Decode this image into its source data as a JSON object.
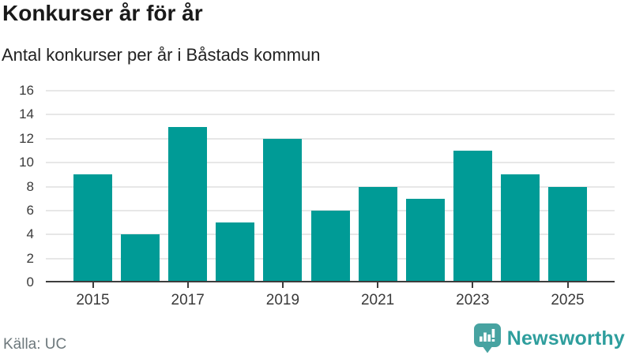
{
  "header": {
    "title": "Konkurser år för år",
    "subtitle": "Antal konkurser per år i Båstads kommun"
  },
  "chart_data": {
    "type": "bar",
    "title": "Konkurser år för år",
    "subtitle": "Antal konkurser per år i Båstads kommun",
    "categories": [
      "2015",
      "2016",
      "2017",
      "2018",
      "2019",
      "2020",
      "2021",
      "2022",
      "2023",
      "2024",
      "2025"
    ],
    "values": [
      9,
      4,
      13,
      5,
      12,
      6,
      8,
      7,
      11,
      9,
      8
    ],
    "xlabel": "",
    "ylabel": "",
    "ylim": [
      0,
      16
    ],
    "ytick_step": 2,
    "ytick_labels": [
      "0",
      "2",
      "4",
      "6",
      "8",
      "10",
      "12",
      "14",
      "16"
    ],
    "xtick_labels": [
      "2015",
      "2017",
      "2019",
      "2021",
      "2023",
      "2025"
    ],
    "grid": true,
    "legend": "none",
    "bar_color": "#009B96"
  },
  "footer": {
    "source": "Källa: UC",
    "brand": "Newsworthy"
  },
  "colors": {
    "bar": "#009B96",
    "brand_teal": "#2E9E9D",
    "logo_bubble": "#47A3A1",
    "gridline": "#e7e7e7",
    "axis": "#3d3d3d",
    "source_text": "#6d787c"
  }
}
